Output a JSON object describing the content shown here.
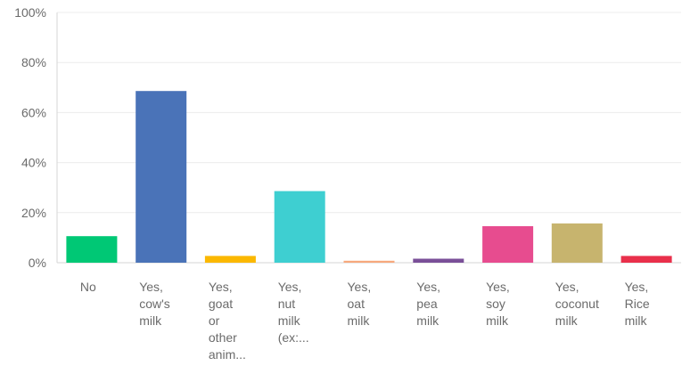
{
  "chart_data": {
    "type": "bar",
    "ylim": [
      0,
      100
    ],
    "y_ticks": [
      "0%",
      "20%",
      "40%",
      "60%",
      "80%",
      "100%"
    ],
    "grid": true,
    "categories": [
      [
        "No"
      ],
      [
        "Yes,",
        "cow's",
        "milk"
      ],
      [
        "Yes,",
        "goat",
        "or",
        "other",
        "anim..."
      ],
      [
        "Yes,",
        "nut",
        "milk",
        "(ex:..."
      ],
      [
        "Yes,",
        "oat",
        "milk"
      ],
      [
        "Yes,",
        "pea",
        "milk"
      ],
      [
        "Yes,",
        "soy",
        "milk"
      ],
      [
        "Yes,",
        "coconut",
        "milk"
      ],
      [
        "Yes,",
        "Rice",
        "milk"
      ]
    ],
    "values": [
      10.6,
      68.6,
      2.7,
      28.6,
      0.8,
      1.6,
      14.6,
      15.7,
      2.7
    ],
    "colors": [
      "#00c875",
      "#4a73b8",
      "#fbb800",
      "#3ecfd1",
      "#f7a87c",
      "#7a4f98",
      "#e74c8f",
      "#c7b46e",
      "#e9304b"
    ]
  }
}
